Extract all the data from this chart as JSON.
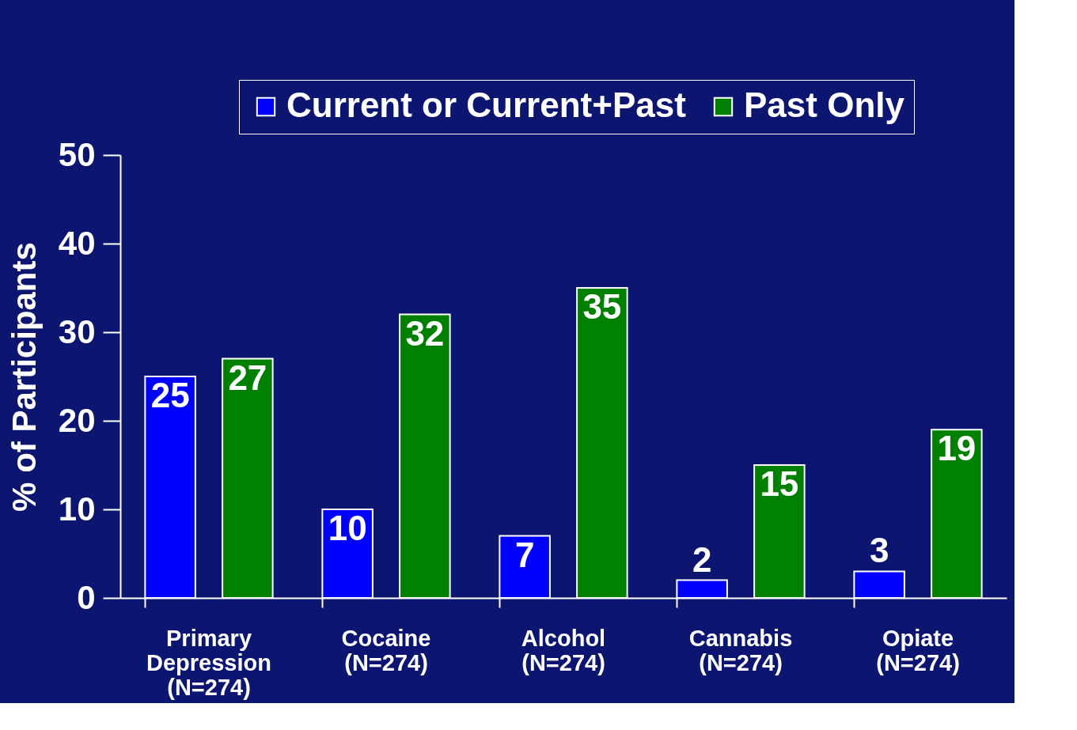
{
  "chart_data": {
    "type": "bar",
    "ylabel": "% of Participants",
    "categories": [
      "Primary\nDepression\n(N=274)",
      "Cocaine\n(N=274)",
      "Alcohol\n(N=274)",
      "Cannabis\n(N=274)",
      "Opiate\n(N=274)"
    ],
    "series": [
      {
        "name": "Current or Current+Past",
        "color": "#0000ff",
        "values": [
          25,
          10,
          7,
          2,
          3
        ]
      },
      {
        "name": "Past Only",
        "color": "#008000",
        "values": [
          27,
          32,
          35,
          15,
          19
        ]
      }
    ],
    "ylim": [
      0,
      50
    ],
    "yticks": [
      0,
      10,
      20,
      30,
      40,
      50
    ],
    "grid": false,
    "legend": "top right",
    "data_labels": true
  }
}
